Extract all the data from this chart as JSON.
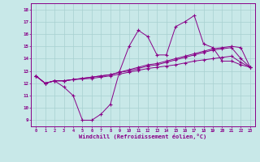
{
  "xlabel": "Windchill (Refroidissement éolien,°C)",
  "background_color": "#c8e8e8",
  "line_color": "#880088",
  "grid_color": "#a8d0d0",
  "x_hours": [
    0,
    1,
    2,
    3,
    4,
    5,
    6,
    7,
    8,
    9,
    10,
    11,
    12,
    13,
    14,
    15,
    16,
    17,
    18,
    19,
    20,
    21,
    22,
    23
  ],
  "series": {
    "temp": [
      12.6,
      12.0,
      12.2,
      11.7,
      11.0,
      9.0,
      9.0,
      9.5,
      10.3,
      13.0,
      15.0,
      16.3,
      15.8,
      14.3,
      14.3,
      16.6,
      17.0,
      17.5,
      15.2,
      14.9,
      13.8,
      13.8,
      13.5,
      13.3
    ],
    "line2": [
      12.6,
      12.0,
      12.2,
      12.2,
      12.3,
      12.4,
      12.5,
      12.6,
      12.7,
      12.9,
      13.1,
      13.3,
      13.5,
      13.6,
      13.8,
      14.0,
      14.2,
      14.4,
      14.6,
      14.8,
      14.9,
      15.0,
      14.9,
      13.3
    ],
    "line3": [
      12.6,
      12.0,
      12.2,
      12.2,
      12.3,
      12.4,
      12.5,
      12.6,
      12.7,
      12.9,
      13.0,
      13.2,
      13.4,
      13.5,
      13.7,
      13.9,
      14.1,
      14.3,
      14.5,
      14.7,
      14.8,
      14.9,
      14.0,
      13.3
    ],
    "line4": [
      12.6,
      12.0,
      12.2,
      12.2,
      12.3,
      12.35,
      12.4,
      12.5,
      12.6,
      12.75,
      12.9,
      13.05,
      13.2,
      13.3,
      13.4,
      13.5,
      13.65,
      13.8,
      13.9,
      14.0,
      14.1,
      14.2,
      13.7,
      13.3
    ]
  },
  "ylim": [
    8.5,
    18.5
  ],
  "yticks": [
    9,
    10,
    11,
    12,
    13,
    14,
    15,
    16,
    17,
    18
  ],
  "xlim": [
    -0.5,
    23.5
  ],
  "xticks": [
    0,
    1,
    2,
    3,
    4,
    5,
    6,
    7,
    8,
    9,
    10,
    11,
    12,
    13,
    14,
    15,
    16,
    17,
    18,
    19,
    20,
    21,
    22,
    23
  ]
}
